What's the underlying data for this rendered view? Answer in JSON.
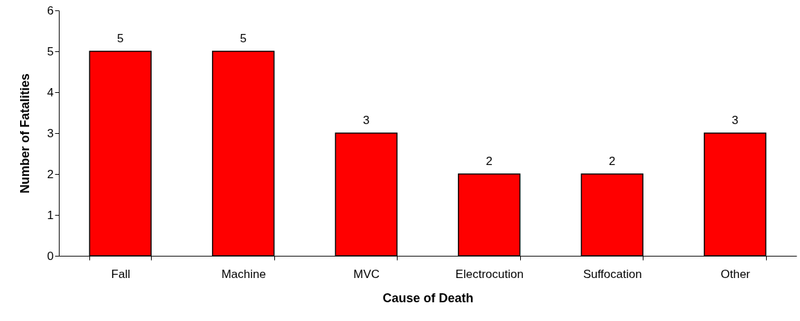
{
  "chart_data": {
    "type": "bar",
    "xlabel": "Cause of Death",
    "ylabel": "Number of Fatalities",
    "categories": [
      "Fall",
      "Machine",
      "MVC",
      "Electrocution",
      "Suffocation",
      "Other"
    ],
    "values": [
      5,
      5,
      3,
      2,
      2,
      3
    ],
    "color": "#ff0000",
    "ylim": [
      0,
      6
    ],
    "yticks": [
      0,
      1,
      2,
      3,
      4,
      5,
      6
    ],
    "grid": false,
    "data_labels": true
  }
}
